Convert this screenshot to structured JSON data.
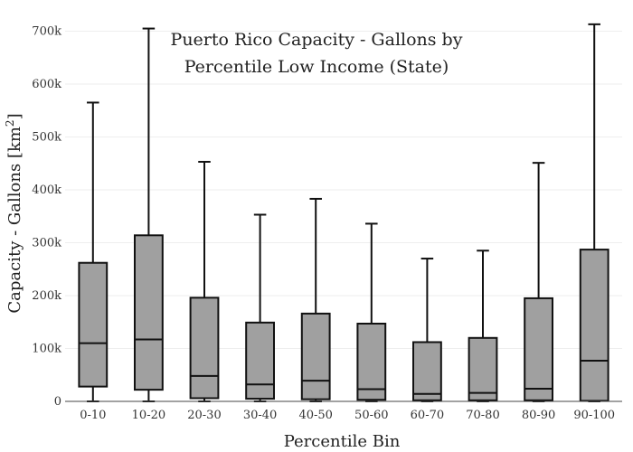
{
  "chart_data": {
    "type": "box",
    "title_lines": [
      "Puerto Rico Capacity - Gallons by",
      "Percentile Low Income (State)"
    ],
    "xlabel": "Percentile Bin",
    "ylabel_text": "Capacity - Gallons  [km",
    "ylabel_sup": "2",
    "ylabel_close": "]",
    "ylim": [
      0,
      735000
    ],
    "yticks": [
      {
        "value": 0,
        "label": "0"
      },
      {
        "value": 100000,
        "label": "100k"
      },
      {
        "value": 200000,
        "label": "200k"
      },
      {
        "value": 300000,
        "label": "300k"
      },
      {
        "value": 400000,
        "label": "400k"
      },
      {
        "value": 500000,
        "label": "500k"
      },
      {
        "value": 600000,
        "label": "600k"
      },
      {
        "value": 700000,
        "label": "700k"
      }
    ],
    "grid": true,
    "box_color": "#a0a0a0",
    "line_color": "#111111",
    "categories": [
      "0-10",
      "10-20",
      "20-30",
      "30-40",
      "40-50",
      "50-60",
      "60-70",
      "70-80",
      "80-90",
      "90-100"
    ],
    "boxes": [
      {
        "min": 0,
        "q1": 28000,
        "median": 110000,
        "q3": 262000,
        "max": 565000
      },
      {
        "min": 0,
        "q1": 22000,
        "median": 117000,
        "q3": 314000,
        "max": 705000
      },
      {
        "min": 0,
        "q1": 6000,
        "median": 48000,
        "q3": 196000,
        "max": 453000
      },
      {
        "min": 0,
        "q1": 5000,
        "median": 32000,
        "q3": 149000,
        "max": 353000
      },
      {
        "min": 0,
        "q1": 4000,
        "median": 39000,
        "q3": 166000,
        "max": 383000
      },
      {
        "min": 0,
        "q1": 3000,
        "median": 23000,
        "q3": 147000,
        "max": 336000
      },
      {
        "min": 0,
        "q1": 2000,
        "median": 14000,
        "q3": 112000,
        "max": 270000
      },
      {
        "min": 0,
        "q1": 2000,
        "median": 16000,
        "q3": 120000,
        "max": 285000
      },
      {
        "min": 0,
        "q1": 2000,
        "median": 24000,
        "q3": 195000,
        "max": 451000
      },
      {
        "min": 0,
        "q1": 1000,
        "median": 77000,
        "q3": 287000,
        "max": 713000
      }
    ]
  }
}
